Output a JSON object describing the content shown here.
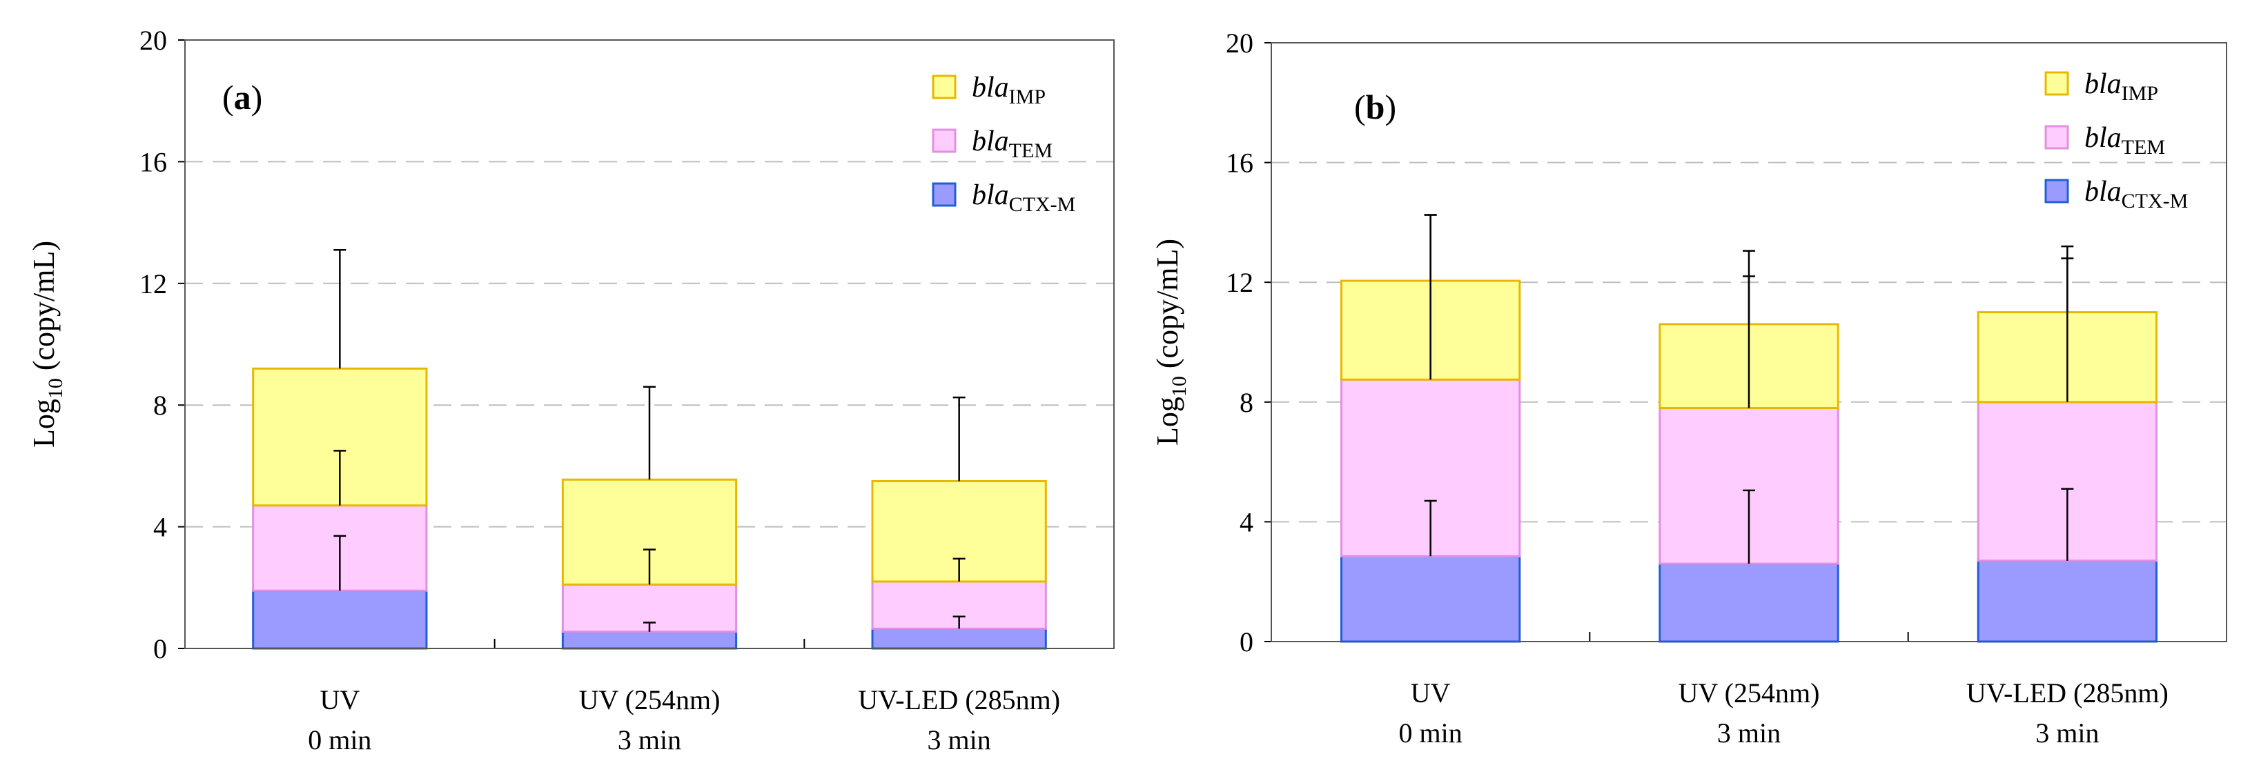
{
  "chart_data": [
    {
      "type": "bar",
      "stacked": true,
      "panel_label": "a",
      "ylabel_main": "Log",
      "ylabel_sub": "10",
      "ylabel_rest": " (copy/mL)",
      "ylim": [
        0,
        20
      ],
      "yticks": [
        "0",
        "4",
        "8",
        "12",
        "16",
        "20"
      ],
      "categories": [
        {
          "line1": "UV",
          "line2": "0 min"
        },
        {
          "line1": "UV (254nm)",
          "line2": "3 min"
        },
        {
          "line1": "UV-LED (285nm)",
          "line2": "3 min"
        }
      ],
      "legend_position": "top-right",
      "series": [
        {
          "name_italic": "bla",
          "name_sub": "CTX-M",
          "fill": "#9b9bff",
          "stroke": "#1f5fd6",
          "values": [
            1.9,
            0.55,
            0.65
          ],
          "errors": [
            1.8,
            0.3,
            0.4
          ]
        },
        {
          "name_italic": "bla",
          "name_sub": "TEM",
          "fill": "#ffccff",
          "stroke": "#e090e0",
          "values": [
            2.8,
            1.55,
            1.55
          ],
          "errors": [
            1.8,
            1.15,
            0.75
          ]
        },
        {
          "name_italic": "bla",
          "name_sub": "IMP",
          "fill": "#ffff99",
          "stroke": "#e8b800",
          "values": [
            4.5,
            3.45,
            3.3
          ],
          "errors": [
            3.9,
            3.05,
            2.75
          ]
        }
      ],
      "legend_order": [
        2,
        1,
        0
      ]
    },
    {
      "type": "bar",
      "stacked": true,
      "panel_label": "b",
      "ylabel_main": "Log",
      "ylabel_sub": "10",
      "ylabel_rest": " (copy/mL)",
      "ylim": [
        0,
        20
      ],
      "yticks": [
        "0",
        "4",
        "8",
        "12",
        "16",
        "20"
      ],
      "categories": [
        {
          "line1": "UV",
          "line2": "0 min"
        },
        {
          "line1": "UV (254nm)",
          "line2": "3 min"
        },
        {
          "line1": "UV-LED (285nm)",
          "line2": "3 min"
        }
      ],
      "legend_position": "top-right",
      "series": [
        {
          "name_italic": "bla",
          "name_sub": "CTX-M",
          "fill": "#9b9bff",
          "stroke": "#1f5fd6",
          "values": [
            2.85,
            2.6,
            2.7
          ],
          "errors": [
            1.85,
            2.45,
            2.4
          ]
        },
        {
          "name_italic": "bla",
          "name_sub": "TEM",
          "fill": "#ffccff",
          "stroke": "#e090e0",
          "values": [
            5.9,
            5.2,
            5.3
          ],
          "errors": [
            5.5,
            4.4,
            4.8
          ]
        },
        {
          "name_italic": "bla",
          "name_sub": "IMP",
          "fill": "#ffff99",
          "stroke": "#e8b800",
          "values": [
            3.3,
            2.8,
            3.0
          ],
          "errors": [
            2.2,
            2.45,
            2.2
          ]
        }
      ],
      "legend_order": [
        2,
        1,
        0
      ]
    }
  ]
}
